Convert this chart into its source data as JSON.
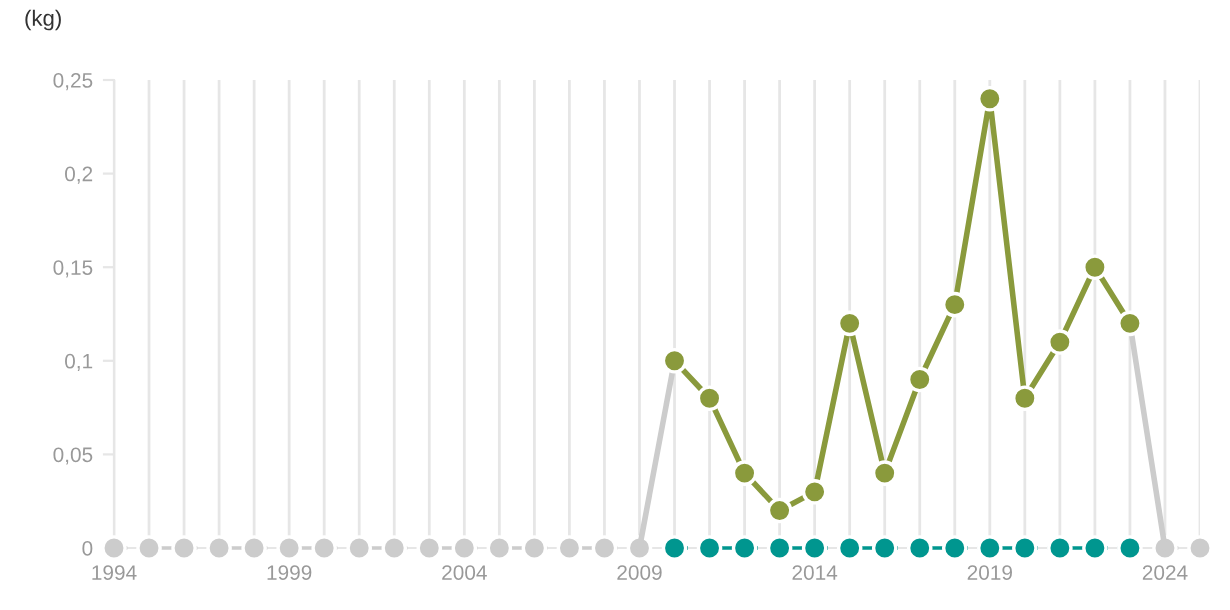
{
  "chart_data": {
    "type": "line",
    "ylabel": "(kg)",
    "x": [
      1994,
      1995,
      1996,
      1997,
      1998,
      1999,
      2000,
      2001,
      2002,
      2003,
      2004,
      2005,
      2006,
      2007,
      2008,
      2009,
      2010,
      2011,
      2012,
      2013,
      2014,
      2015,
      2016,
      2017,
      2018,
      2019,
      2020,
      2021,
      2022,
      2023,
      2024,
      2025
    ],
    "series": [
      {
        "color": "#cccccc",
        "line_style": "dashed",
        "marker": "circle",
        "values": [
          0,
          0,
          0,
          0,
          0,
          0,
          0,
          0,
          0,
          0,
          0,
          0,
          0,
          0,
          0,
          0,
          null,
          null,
          null,
          null,
          null,
          null,
          null,
          null,
          null,
          null,
          null,
          null,
          null,
          null,
          0,
          0
        ]
      },
      {
        "color": "#cccccc",
        "line_style": "solid",
        "marker": "none",
        "x": [
          2009,
          2010
        ],
        "values": [
          0,
          0.1
        ]
      },
      {
        "color": "#cccccc",
        "line_style": "solid",
        "marker": "none",
        "x": [
          2023,
          2024
        ],
        "values": [
          0.12,
          0
        ]
      },
      {
        "color": "#00968f",
        "line_style": "dashed",
        "marker": "circle",
        "x": [
          2010,
          2011,
          2012,
          2013,
          2014,
          2015,
          2016,
          2017,
          2018,
          2019,
          2020,
          2021,
          2022,
          2023
        ],
        "values": [
          0,
          0,
          0,
          0,
          0,
          0,
          0,
          0,
          0,
          0,
          0,
          0,
          0,
          0
        ]
      },
      {
        "color": "#8a9a3c",
        "line_style": "solid",
        "marker": "circle",
        "x": [
          2010,
          2011,
          2012,
          2013,
          2014,
          2015,
          2016,
          2017,
          2018,
          2019,
          2020,
          2021,
          2022,
          2023
        ],
        "values": [
          0.1,
          0.08,
          0.04,
          0.02,
          0.03,
          0.12,
          0.04,
          0.09,
          0.13,
          0.24,
          0.08,
          0.11,
          0.15,
          0.12
        ]
      }
    ],
    "xlim": [
      1994,
      2025
    ],
    "xticks": [
      1994,
      {
        "value": 1995,
        "label": null
      },
      {
        "value": 1996,
        "label": null
      },
      {
        "value": 1997,
        "label": null
      },
      {
        "value": 1998,
        "label": null
      },
      1999,
      {
        "value": 2000,
        "label": null
      },
      {
        "value": 2001,
        "label": null
      },
      {
        "value": 2002,
        "label": null
      },
      {
        "value": 2003,
        "label": null
      },
      2004,
      {
        "value": 2005,
        "label": null
      },
      {
        "value": 2006,
        "label": null
      },
      {
        "value": 2007,
        "label": null
      },
      {
        "value": 2008,
        "label": null
      },
      2009,
      {
        "value": 2010,
        "label": null
      },
      {
        "value": 2011,
        "label": null
      },
      {
        "value": 2012,
        "label": null
      },
      {
        "value": 2013,
        "label": null
      },
      2014,
      {
        "value": 2015,
        "label": null
      },
      {
        "value": 2016,
        "label": null
      },
      {
        "value": 2017,
        "label": null
      },
      {
        "value": 2018,
        "label": null
      },
      2019,
      {
        "value": 2020,
        "label": null
      },
      {
        "value": 2021,
        "label": null
      },
      {
        "value": 2022,
        "label": null
      },
      {
        "value": 2023,
        "label": null
      },
      2024,
      {
        "value": 2025,
        "label": null
      }
    ],
    "ylim": [
      0,
      0.25
    ],
    "yticks": [
      0,
      {
        "value": 0.05,
        "label": "0,05"
      },
      {
        "value": 0.1,
        "label": "0,1"
      },
      {
        "value": 0.15,
        "label": "0,15"
      },
      {
        "value": 0.2,
        "label": "0,2"
      },
      {
        "value": 0.25,
        "label": "0,25"
      }
    ],
    "grid": "x",
    "legend": false
  }
}
